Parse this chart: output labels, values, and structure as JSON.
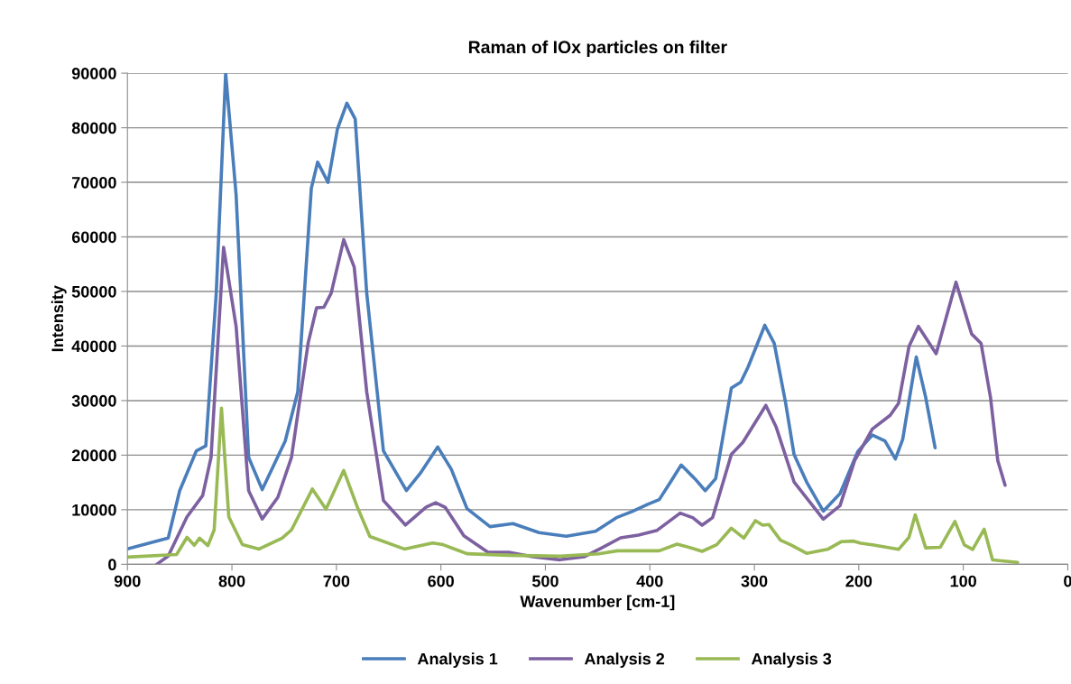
{
  "chart_data": {
    "type": "line",
    "title": "Raman of IOx particles on filter",
    "xlabel": "Wavenumber [cm-1]",
    "ylabel": "Intensity",
    "xlim": [
      900,
      0
    ],
    "xticks": [
      900,
      800,
      700,
      600,
      500,
      400,
      300,
      200,
      100,
      0
    ],
    "ylim": [
      0,
      90000
    ],
    "yticks": [
      0,
      10000,
      20000,
      30000,
      40000,
      50000,
      60000,
      70000,
      80000,
      90000
    ],
    "grid": "y",
    "legend": "bottom",
    "marker": "none",
    "line_style": "solid",
    "series": [
      {
        "name": "Analysis 1",
        "color": "#4a7ebb",
        "x": [
          900,
          861,
          850,
          834,
          825,
          815,
          806,
          796,
          784,
          771,
          749,
          737,
          724,
          718,
          708,
          699,
          690,
          682,
          671,
          655,
          633,
          620,
          603,
          590,
          575,
          553,
          531,
          506,
          480,
          452,
          432,
          417,
          402,
          391,
          380,
          370,
          357,
          347,
          337,
          322,
          313,
          306,
          290,
          281,
          270,
          262,
          250,
          234,
          218,
          201,
          187,
          175,
          165,
          158,
          145,
          136,
          127
        ],
        "values": [
          2830,
          4800,
          13500,
          20800,
          21700,
          49700,
          90000,
          67700,
          19600,
          13700,
          22600,
          31600,
          68900,
          73700,
          70000,
          79800,
          84500,
          81600,
          49700,
          20800,
          13500,
          16600,
          21500,
          17400,
          10200,
          6900,
          7450,
          5800,
          5130,
          6060,
          8550,
          9660,
          11000,
          11860,
          15160,
          18200,
          15700,
          13500,
          15700,
          32300,
          33370,
          36150,
          43800,
          40500,
          29500,
          20130,
          15100,
          9750,
          12950,
          20670,
          23700,
          22600,
          19300,
          22900,
          38000,
          30600,
          21350
        ]
      },
      {
        "name": "Analysis 2",
        "color": "#7d60a0",
        "x": [
          872,
          861,
          843,
          828,
          820,
          808,
          796,
          784,
          771,
          756,
          743,
          727,
          719,
          712,
          705,
          693,
          683,
          671,
          655,
          634,
          614,
          605,
          596,
          578,
          555,
          535,
          512,
          486,
          463,
          446,
          428,
          411,
          393,
          371,
          359,
          350,
          340,
          322,
          311,
          289,
          279,
          262,
          234,
          218,
          204,
          187,
          170,
          162,
          152,
          143,
          126,
          107,
          92,
          83,
          74,
          67,
          60
        ],
        "values": [
          0,
          1500,
          8700,
          12600,
          19600,
          58100,
          43600,
          13500,
          8300,
          12300,
          19600,
          40600,
          47000,
          47100,
          49700,
          59500,
          54500,
          31600,
          11700,
          7200,
          10500,
          11300,
          10470,
          5240,
          2200,
          2200,
          1370,
          830,
          1370,
          3030,
          4850,
          5350,
          6230,
          9380,
          8550,
          7170,
          8550,
          20130,
          22330,
          29120,
          25100,
          15100,
          8270,
          10750,
          19000,
          24800,
          27300,
          29500,
          39900,
          43600,
          38600,
          51700,
          42200,
          40500,
          30600,
          19000,
          14500
        ]
      },
      {
        "name": "Analysis 3",
        "color": "#98b954",
        "x": [
          900,
          853,
          843,
          836,
          831,
          823,
          817,
          810,
          803,
          790,
          774,
          752,
          743,
          723,
          710,
          693,
          680,
          668,
          635,
          608,
          598,
          575,
          535,
          486,
          449,
          431,
          391,
          374,
          359,
          350,
          336,
          322,
          310,
          299,
          292,
          286,
          275,
          265,
          250,
          230,
          217,
          205,
          198,
          187,
          162,
          152,
          146,
          136,
          122,
          108,
          99,
          91,
          80,
          72,
          48
        ],
        "values": [
          1320,
          1800,
          4940,
          3490,
          4800,
          3430,
          6300,
          28600,
          8700,
          3600,
          2800,
          4800,
          6300,
          13800,
          10100,
          17200,
          10500,
          5100,
          2800,
          3900,
          3600,
          1930,
          1650,
          1490,
          1930,
          2480,
          2480,
          3690,
          2920,
          2370,
          3590,
          6620,
          4800,
          8000,
          7170,
          7280,
          4410,
          3560,
          2010,
          2730,
          4140,
          4250,
          3860,
          3560,
          2730,
          4940,
          9070,
          3010,
          3120,
          7860,
          3560,
          2730,
          6430,
          800,
          360
        ]
      }
    ]
  }
}
